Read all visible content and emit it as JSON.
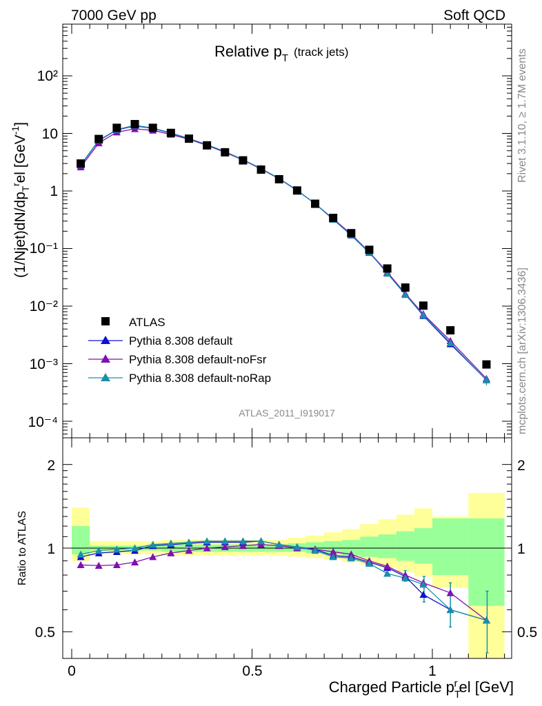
{
  "header": {
    "left": "7000 GeV pp",
    "right": "Soft QCD"
  },
  "side_labels": {
    "rivet": "Rivet 3.1.10, ≥ 1.7M events",
    "mcplots": "mcplots.cern.ch [arXiv:1306.3436]"
  },
  "plot_title": {
    "main": "Relative p",
    "sub": "T",
    "suffix": "(track jets)"
  },
  "analysis_tag": "ATLAS_2011_I919017",
  "axes": {
    "ylabel_main": "(1/Njet)dN/dp",
    "ylabel_ratio": "Ratio to ATLAS",
    "xlabel": "Charged Particle p",
    "xlabel_rest": "el [GeV]",
    "main_yticks": [
      "10⁻⁴",
      "10⁻³",
      "10⁻²",
      "10⁻¹",
      "1",
      "10",
      "10²"
    ],
    "ratio_yticks": [
      "0.5",
      "1",
      "2"
    ],
    "xticks": [
      "0",
      "0.5",
      "1"
    ]
  },
  "legend": [
    {
      "label": "ATLAS",
      "marker": "square",
      "color": "#000000"
    },
    {
      "label": "Pythia 8.308 default",
      "marker": "triangle",
      "color": "#1010d0"
    },
    {
      "label": "Pythia 8.308 default-noFsr",
      "marker": "triangle",
      "color": "#8010b0"
    },
    {
      "label": "Pythia 8.308 default-noRap",
      "marker": "triangle",
      "color": "#1a8faa"
    }
  ],
  "chart_data": {
    "type": "scatter",
    "x_range": [
      -0.025,
      1.225
    ],
    "main_ylim": [
      5e-05,
      1000
    ],
    "main_yscale": "log",
    "ratio_ylim": [
      0.35,
      2.4
    ],
    "ratio_yscale": "log",
    "x": [
      0.025,
      0.075,
      0.125,
      0.175,
      0.225,
      0.275,
      0.325,
      0.375,
      0.425,
      0.475,
      0.525,
      0.575,
      0.625,
      0.675,
      0.725,
      0.775,
      0.825,
      0.875,
      0.925,
      0.975,
      1.05,
      1.15
    ],
    "bin_edges": [
      0.0,
      0.05,
      0.1,
      0.15,
      0.2,
      0.25,
      0.3,
      0.35,
      0.4,
      0.45,
      0.5,
      0.55,
      0.6,
      0.65,
      0.7,
      0.75,
      0.8,
      0.85,
      0.9,
      0.95,
      1.0,
      1.1,
      1.2
    ],
    "atlas": [
      3.0,
      8.0,
      12.5,
      14.5,
      12.5,
      10.2,
      8.1,
      6.2,
      4.7,
      3.4,
      2.35,
      1.6,
      1.02,
      0.6,
      0.34,
      0.185,
      0.095,
      0.045,
      0.021,
      0.0102,
      0.0038,
      0.00097
    ],
    "series": [
      {
        "name": "Pythia 8.308 default",
        "color": "#1010d0",
        "values": [
          2.8,
          7.5,
          11.5,
          13.5,
          12.2,
          10.1,
          8.1,
          6.3,
          4.8,
          3.5,
          2.45,
          1.65,
          1.03,
          0.6,
          0.32,
          0.17,
          0.085,
          0.038,
          0.016,
          0.0068,
          0.0022,
          0.00052
        ],
        "ratio": [
          0.93,
          0.96,
          0.97,
          0.98,
          1.02,
          1.03,
          1.04,
          1.05,
          1.05,
          1.05,
          1.06,
          1.03,
          1.01,
          0.99,
          0.94,
          0.93,
          0.89,
          0.85,
          0.79,
          0.68,
          0.6,
          0.55
        ]
      },
      {
        "name": "Pythia 8.308 default-noFsr",
        "color": "#8010b0",
        "values": [
          2.6,
          6.8,
          10.5,
          12.0,
          11.3,
          9.6,
          7.9,
          6.2,
          4.7,
          3.45,
          2.4,
          1.63,
          1.02,
          0.6,
          0.33,
          0.178,
          0.087,
          0.039,
          0.0165,
          0.0073,
          0.0025,
          0.00055
        ],
        "ratio": [
          0.87,
          0.865,
          0.87,
          0.89,
          0.93,
          0.96,
          0.98,
          1.0,
          1.01,
          1.02,
          1.03,
          1.02,
          1.0,
          0.99,
          0.97,
          0.95,
          0.9,
          0.86,
          0.8,
          0.75,
          0.69,
          0.55
        ]
      },
      {
        "name": "Pythia 8.308 default-noRap",
        "color": "#1a8faa",
        "values": [
          2.85,
          7.6,
          11.7,
          13.8,
          12.4,
          10.2,
          8.2,
          6.4,
          4.85,
          3.5,
          2.45,
          1.65,
          1.03,
          0.6,
          0.32,
          0.172,
          0.086,
          0.037,
          0.0158,
          0.007,
          0.0023,
          0.00052
        ],
        "ratio": [
          0.95,
          0.98,
          0.99,
          1.0,
          1.03,
          1.04,
          1.05,
          1.06,
          1.06,
          1.06,
          1.06,
          1.03,
          1.01,
          0.98,
          0.93,
          0.92,
          0.88,
          0.81,
          0.78,
          0.74,
          0.6,
          0.55
        ]
      }
    ],
    "ratio_err_bars": [
      {
        "x": 0.925,
        "lo": 0.76,
        "hi": 0.83
      },
      {
        "x": 0.975,
        "lo": 0.64,
        "hi": 0.79
      },
      {
        "x": 1.05,
        "lo": 0.52,
        "hi": 0.75
      },
      {
        "x": 1.15,
        "lo": 0.42,
        "hi": 0.7
      }
    ],
    "band_inner": [
      [
        0.95,
        1.2
      ],
      [
        0.98,
        1.02
      ],
      [
        0.98,
        1.02
      ],
      [
        0.98,
        1.02
      ],
      [
        0.98,
        1.02
      ],
      [
        0.97,
        1.03
      ],
      [
        0.97,
        1.03
      ],
      [
        0.97,
        1.03
      ],
      [
        0.97,
        1.03
      ],
      [
        0.97,
        1.03
      ],
      [
        0.97,
        1.03
      ],
      [
        0.97,
        1.03
      ],
      [
        0.97,
        1.04
      ],
      [
        0.96,
        1.05
      ],
      [
        0.95,
        1.06
      ],
      [
        0.94,
        1.07
      ],
      [
        0.93,
        1.1
      ],
      [
        0.92,
        1.12
      ],
      [
        0.9,
        1.15
      ],
      [
        0.88,
        1.18
      ],
      [
        0.8,
        1.28
      ],
      [
        0.62,
        1.28
      ]
    ],
    "band_outer": [
      [
        0.9,
        1.4
      ],
      [
        0.95,
        1.06
      ],
      [
        0.95,
        1.06
      ],
      [
        0.95,
        1.06
      ],
      [
        0.95,
        1.06
      ],
      [
        0.94,
        1.07
      ],
      [
        0.94,
        1.07
      ],
      [
        0.94,
        1.07
      ],
      [
        0.94,
        1.07
      ],
      [
        0.94,
        1.07
      ],
      [
        0.94,
        1.07
      ],
      [
        0.94,
        1.07
      ],
      [
        0.93,
        1.09
      ],
      [
        0.92,
        1.11
      ],
      [
        0.91,
        1.14
      ],
      [
        0.89,
        1.17
      ],
      [
        0.87,
        1.22
      ],
      [
        0.85,
        1.27
      ],
      [
        0.82,
        1.32
      ],
      [
        0.79,
        1.39
      ],
      [
        0.72,
        1.3
      ],
      [
        0.33,
        1.58
      ]
    ]
  }
}
